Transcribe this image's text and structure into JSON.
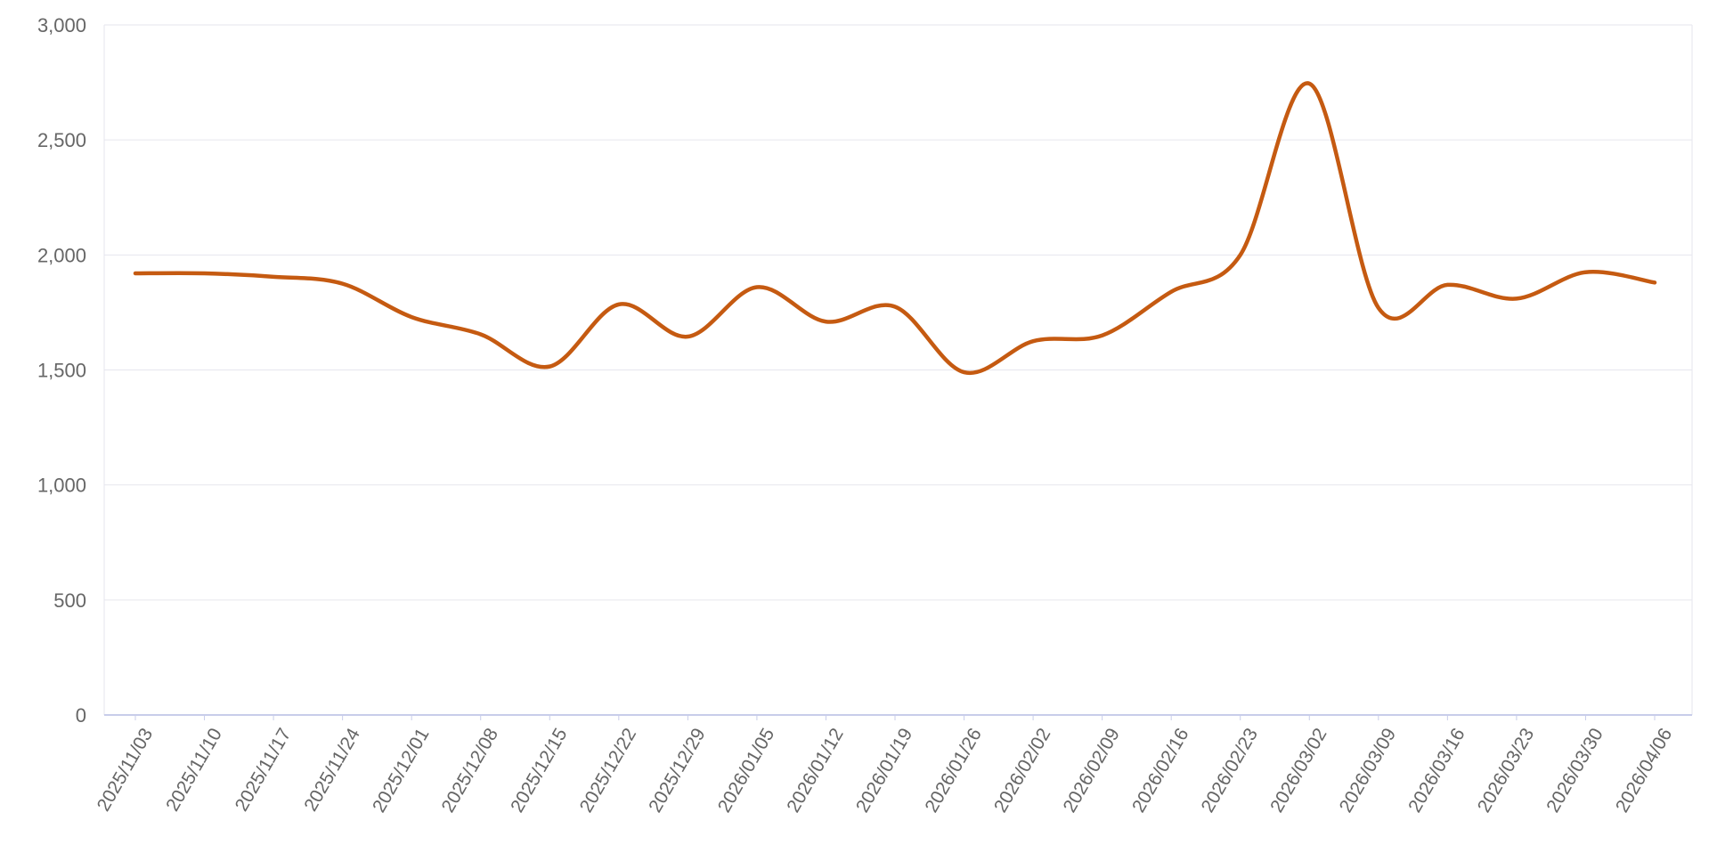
{
  "chart_data": {
    "type": "line",
    "title": "",
    "xlabel": "",
    "ylabel": "",
    "ylim": [
      0,
      3000
    ],
    "yticks": [
      "0",
      "500",
      "1,000",
      "1,500",
      "2,000",
      "2,500",
      "3,000"
    ],
    "yticks_values": [
      0,
      500,
      1000,
      1500,
      2000,
      2500,
      3000
    ],
    "grid": "horizontal",
    "legend": "none",
    "categories": [
      "2025/11/03",
      "2025/11/10",
      "2025/11/17",
      "2025/11/24",
      "2025/12/01",
      "2025/12/08",
      "2025/12/15",
      "2025/12/22",
      "2025/12/29",
      "2026/01/05",
      "2026/01/12",
      "2026/01/19",
      "2026/01/26",
      "2026/02/02",
      "2026/02/09",
      "2026/02/16",
      "2026/02/23",
      "2026/03/02",
      "2026/03/09",
      "2026/03/16",
      "2026/03/23",
      "2026/03/30",
      "2026/04/06"
    ],
    "series": [
      {
        "color": "#c55a11",
        "values": [
          1920,
          1920,
          1905,
          1875,
          1730,
          1655,
          1515,
          1785,
          1645,
          1860,
          1710,
          1775,
          1490,
          1625,
          1650,
          1840,
          2000,
          2745,
          1770,
          1870,
          1810,
          1925,
          1880
        ]
      }
    ]
  }
}
